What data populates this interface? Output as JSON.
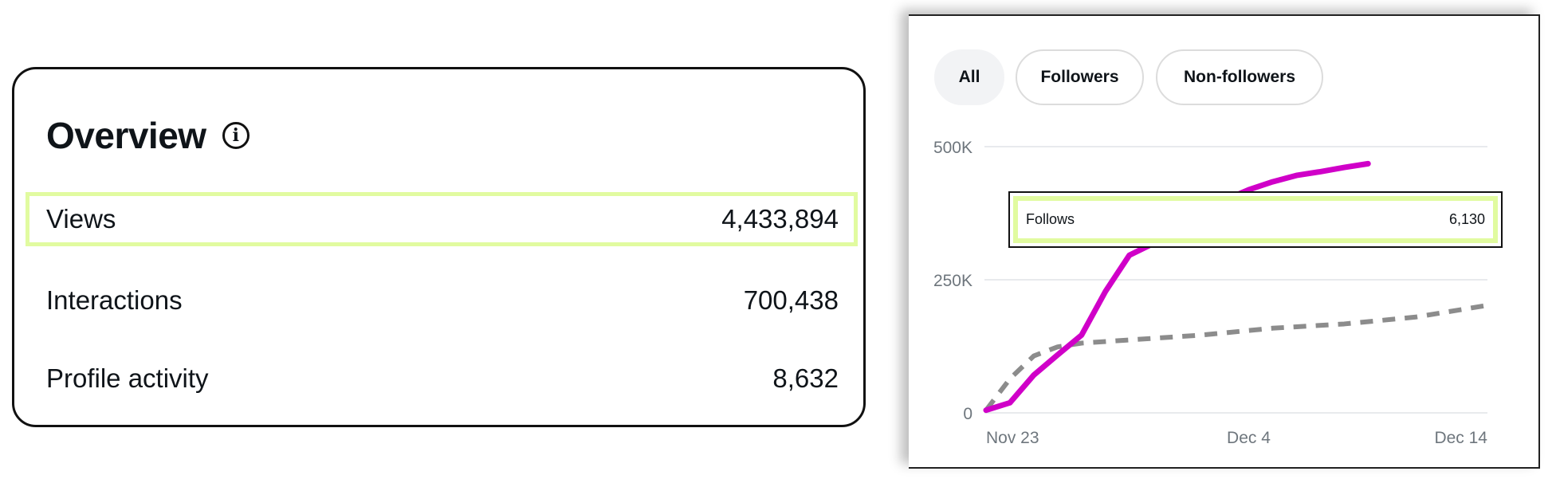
{
  "overview": {
    "title": "Overview",
    "info_icon": "info-icon",
    "rows": [
      {
        "label": "Views",
        "value": "4,433,894",
        "highlighted": true
      },
      {
        "label": "Interactions",
        "value": "700,438"
      },
      {
        "label": "Profile activity",
        "value": "8,632"
      }
    ],
    "highlight_color": "#e1fba0"
  },
  "chart_panel": {
    "filters": [
      {
        "label": "All",
        "selected": true
      },
      {
        "label": "Followers"
      },
      {
        "label": "Non-followers"
      }
    ],
    "tooltip": {
      "label": "Follows",
      "value": "6,130"
    }
  },
  "chart_data": {
    "type": "line",
    "yticks": [
      "0",
      "250K",
      "500K"
    ],
    "ylim": [
      0,
      500000
    ],
    "xticks": [
      "Nov 23",
      "Dec 4",
      "Dec 14"
    ],
    "xlim": [
      "Nov 23",
      "Dec 14"
    ],
    "grid": true,
    "series": [
      {
        "color": "#d000c8",
        "style": "solid",
        "x": [
          "Nov 23",
          "Nov 24",
          "Nov 25",
          "Nov 26",
          "Nov 27",
          "Nov 28",
          "Nov 29",
          "Nov 30",
          "Dec 1",
          "Dec 2",
          "Dec 3",
          "Dec 4",
          "Dec 5",
          "Dec 6",
          "Dec 7",
          "Dec 8",
          "Dec 9"
        ],
        "y": [
          5000,
          19000,
          71000,
          109000,
          146000,
          228000,
          296000,
          318000,
          342000,
          372000,
          400000,
          419000,
          434000,
          446000,
          453000,
          461000,
          468000
        ]
      },
      {
        "color": "#8c8c8c",
        "style": "dashed",
        "x": [
          "Nov 23",
          "Nov 24",
          "Nov 25",
          "Nov 26",
          "Nov 27",
          "Nov 29",
          "Dec 2",
          "Dec 5",
          "Dec 8",
          "Dec 11",
          "Dec 14"
        ],
        "y": [
          5000,
          64000,
          107000,
          124000,
          131000,
          137000,
          146000,
          159000,
          167000,
          180000,
          202000
        ]
      }
    ]
  }
}
